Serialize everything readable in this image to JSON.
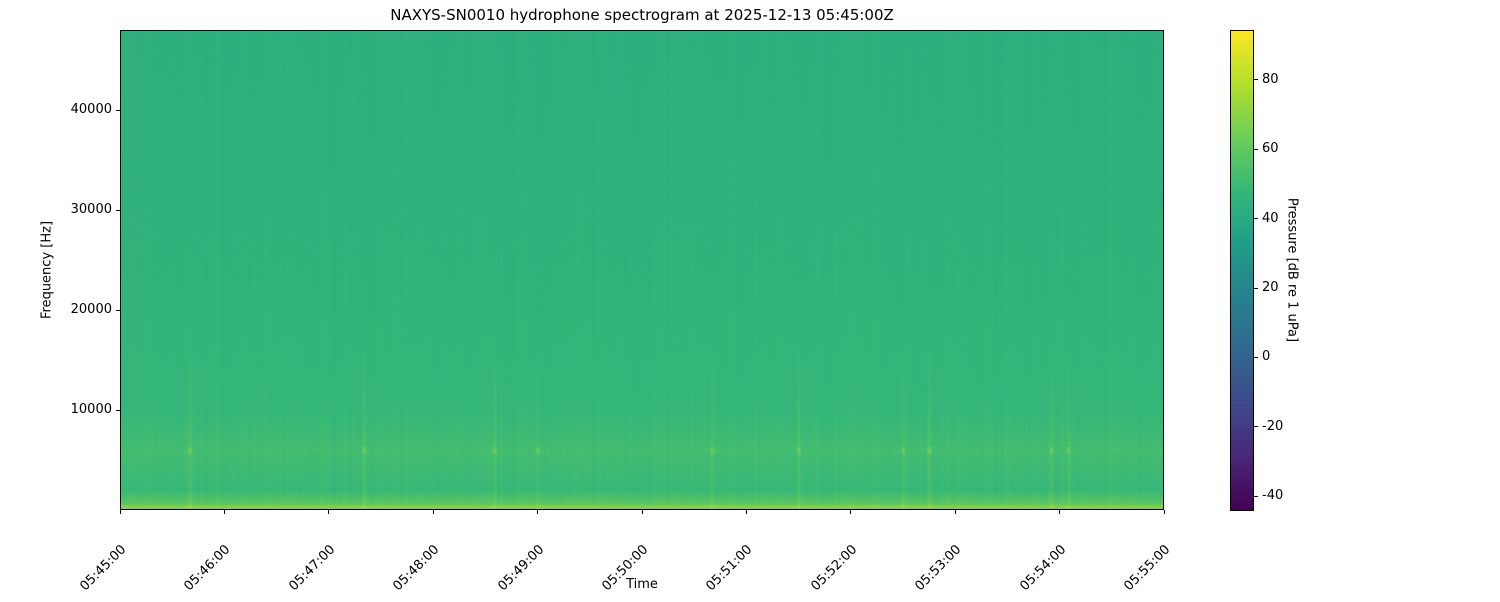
{
  "chart_data": {
    "type": "heatmap",
    "title": "NAXYS-SN0010 hydrophone spectrogram at 2025-12-13 05:45:00Z",
    "xlabel": "Time",
    "ylabel": "Frequency [Hz]",
    "colorbar_label": "Pressure [dB re 1 uPa]",
    "colormap": "viridis",
    "xlim": [
      "05:45:00",
      "05:55:00"
    ],
    "ylim": [
      0,
      48000
    ],
    "clim": [
      -44,
      94.4
    ],
    "x_ticks": [
      "05:45:00",
      "05:46:00",
      "05:47:00",
      "05:48:00",
      "05:49:00",
      "05:50:00",
      "05:51:00",
      "05:52:00",
      "05:53:00",
      "05:54:00",
      "05:55:00"
    ],
    "y_ticks": [
      10000,
      20000,
      30000,
      40000
    ],
    "colorbar_ticks": [
      -40,
      -20,
      0,
      20,
      40,
      60,
      80
    ],
    "grid": false,
    "approx_levels_db": [
      {
        "freq_hz": 47000,
        "level": 44
      },
      {
        "freq_hz": 30000,
        "level": 45
      },
      {
        "freq_hz": 16000,
        "level": 47
      },
      {
        "freq_hz": 10000,
        "level": 48
      },
      {
        "freq_hz": 6000,
        "level": 52
      },
      {
        "freq_hz": 2000,
        "level": 49
      },
      {
        "freq_hz": 200,
        "level": 62
      }
    ],
    "tonal_line_hz": 6000,
    "broadband_event_times": [
      "05:45:40",
      "05:47:20",
      "05:48:35",
      "05:49:00",
      "05:50:40",
      "05:51:30",
      "05:52:30",
      "05:52:45",
      "05:53:55",
      "05:54:05"
    ]
  }
}
